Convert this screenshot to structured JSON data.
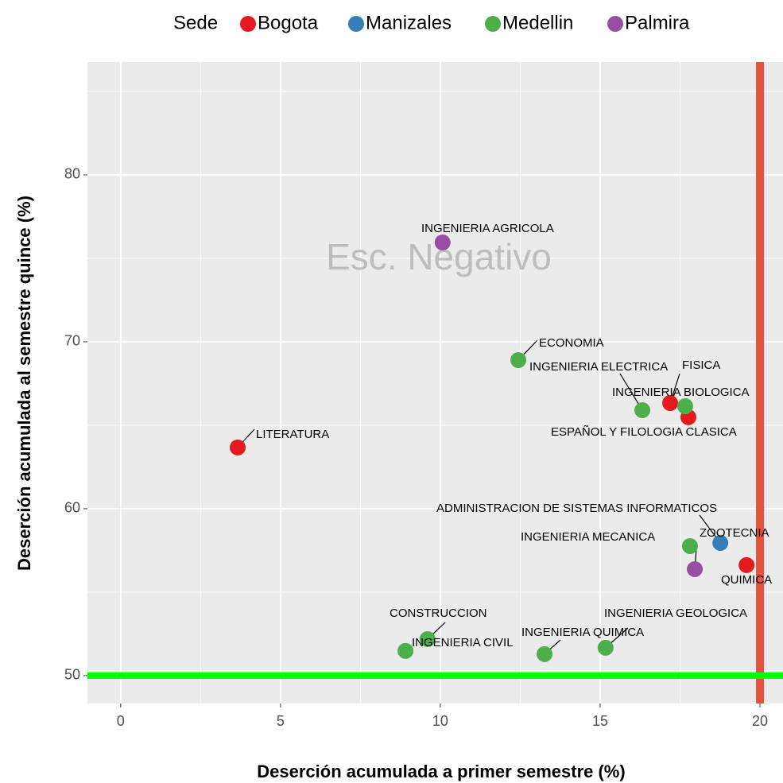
{
  "chart_data": {
    "type": "scatter",
    "legend_title": "Sede",
    "legend": "top",
    "x_label": "Deserción acumulada a primer semestre (%)",
    "y_label": "Deserción acumulada al semestre quince (%)",
    "xlim": [
      -1.04,
      20.72
    ],
    "ylim": [
      48.33,
      86.76
    ],
    "xticks": [
      0,
      5,
      10,
      15,
      20
    ],
    "yticks": [
      50,
      60,
      70,
      80
    ],
    "grid": true,
    "annotation": "Esc. Negativo",
    "vline": 20,
    "vline_color": "#e5533c",
    "hline": 50,
    "hline_color": "#00ff00",
    "series": [
      {
        "name": "Bogota",
        "color": "#e41a1c",
        "x": [
          3.66,
          17.19,
          17.76,
          19.58
        ],
        "values": [
          63.67,
          66.33,
          65.48,
          56.62
        ],
        "labels": [
          "LITERATURA",
          "FISICA",
          "ESPAÑOL Y FILOLOGIA CLASICA",
          "QUIMICA"
        ]
      },
      {
        "name": "Manizales",
        "color": "#377eb8",
        "x": [
          18.76
        ],
        "values": [
          57.95
        ],
        "labels": [
          "ADMINISTRACION DE SISTEMAS INFORMATICOS"
        ]
      },
      {
        "name": "Medellin",
        "color": "#4daf4a",
        "x": [
          12.44,
          16.32,
          17.66,
          17.81,
          9.6,
          8.91,
          13.26,
          15.17
        ],
        "values": [
          68.9,
          65.9,
          66.14,
          57.76,
          52.19,
          51.48,
          51.29,
          51.67
        ],
        "labels": [
          "ECONOMIA",
          "INGENIERIA ELECTRICA",
          "INGENIERIA BIOLOGICA",
          "INGENIERIA MECANICA",
          "CONSTRUCCION",
          "INGENIERIA CIVIL",
          "INGENIERIA QUIMICA",
          "INGENIERIA GEOLOGICA"
        ]
      },
      {
        "name": "Palmira",
        "color": "#984ea3",
        "x": [
          10.07,
          17.96
        ],
        "values": [
          75.95,
          56.38
        ],
        "labels": [
          "INGENIERIA AGRICOLA",
          "ZOOTECNIA"
        ]
      }
    ]
  }
}
